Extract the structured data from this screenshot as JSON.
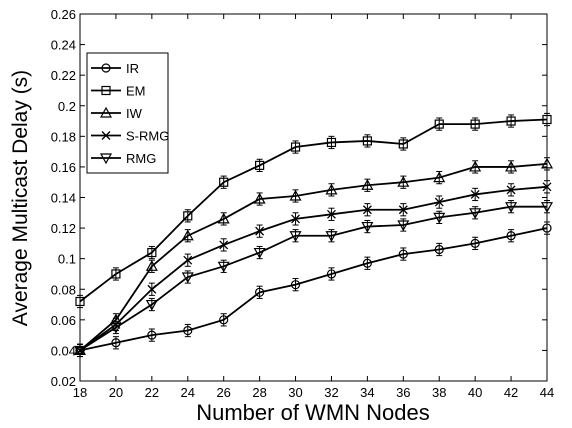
{
  "chart_data": {
    "type": "line",
    "title": "",
    "xlabel": "Number of WMN Nodes",
    "ylabel": "Average Multicast Delay (s)",
    "xlim": [
      18,
      44
    ],
    "ylim": [
      0.02,
      0.26
    ],
    "x_ticks": [
      "18",
      "20",
      "22",
      "24",
      "26",
      "28",
      "30",
      "32",
      "34",
      "36",
      "38",
      "40",
      "42",
      "44"
    ],
    "y_ticks": [
      "0.02",
      "0.04",
      "0.06",
      "0.08",
      "0.1",
      "0.12",
      "0.14",
      "0.16",
      "0.18",
      "0.2",
      "0.22",
      "0.24",
      "0.26"
    ],
    "x": [
      18,
      20,
      22,
      24,
      26,
      28,
      30,
      32,
      34,
      36,
      38,
      40,
      42,
      44
    ],
    "grid": false,
    "legend_position": "top-left",
    "series": [
      {
        "name": "IR",
        "marker": "circle",
        "values": [
          0.04,
          0.045,
          0.05,
          0.053,
          0.06,
          0.078,
          0.083,
          0.09,
          0.097,
          0.103,
          0.106,
          0.11,
          0.115,
          0.12
        ]
      },
      {
        "name": "EM",
        "marker": "square",
        "values": [
          0.072,
          0.09,
          0.104,
          0.128,
          0.15,
          0.161,
          0.173,
          0.176,
          0.177,
          0.175,
          0.188,
          0.188,
          0.19,
          0.191
        ]
      },
      {
        "name": "IW",
        "marker": "triangle-up",
        "values": [
          0.04,
          0.06,
          0.095,
          0.115,
          0.126,
          0.139,
          0.141,
          0.145,
          0.148,
          0.15,
          0.153,
          0.16,
          0.16,
          0.162
        ]
      },
      {
        "name": "S-RMG",
        "marker": "x",
        "values": [
          0.04,
          0.057,
          0.08,
          0.099,
          0.109,
          0.118,
          0.126,
          0.129,
          0.132,
          0.132,
          0.137,
          0.142,
          0.145,
          0.147
        ]
      },
      {
        "name": "RMG",
        "marker": "triangle-down",
        "values": [
          0.04,
          0.055,
          0.07,
          0.088,
          0.095,
          0.104,
          0.115,
          0.115,
          0.121,
          0.122,
          0.127,
          0.13,
          0.134,
          0.134
        ]
      }
    ],
    "error_bar": 0.004
  }
}
